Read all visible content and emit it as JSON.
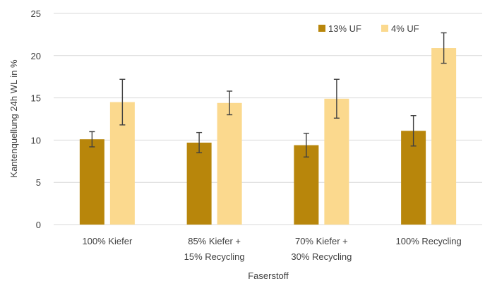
{
  "chart_data": {
    "type": "bar",
    "categories": [
      [
        "100% Kiefer"
      ],
      [
        "85% Kiefer +",
        "15% Recycling"
      ],
      [
        "70% Kiefer +",
        "30% Recycling"
      ],
      [
        "100% Recycling"
      ]
    ],
    "series": [
      {
        "name": "13% UF",
        "color": "#b8860b",
        "values": [
          10.1,
          9.7,
          9.4,
          11.1
        ],
        "errors": [
          0.9,
          1.2,
          1.4,
          1.8
        ]
      },
      {
        "name": "4% UF",
        "color": "#fbd98e",
        "values": [
          14.5,
          14.4,
          14.9,
          20.9
        ],
        "errors": [
          2.7,
          1.4,
          2.3,
          1.8
        ]
      }
    ],
    "xlabel": "Faserstoff",
    "ylabel": "Kantenquellung 24h WL in %",
    "ylim": [
      0,
      25
    ],
    "yticks": [
      0,
      5,
      10,
      15,
      20,
      25
    ],
    "grid": true,
    "legend_position": "top-right",
    "gridline_color": "#d9d9d9",
    "errorbar_color": "#404040"
  }
}
